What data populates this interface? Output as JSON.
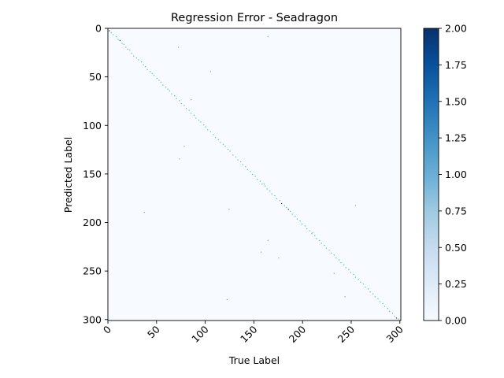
{
  "chart_data": {
    "type": "heatmap",
    "title": "Regression Error - Seadragon",
    "xlabel": "True Label",
    "ylabel": "Predicted Label",
    "xlim": [
      0,
      301
    ],
    "ylim": [
      301,
      0
    ],
    "x_ticks": [
      0,
      50,
      100,
      150,
      200,
      250,
      300
    ],
    "y_ticks": [
      0,
      50,
      100,
      150,
      200,
      250,
      300
    ],
    "x_tick_rotation_deg": 45,
    "colormap": "Blues",
    "color_range": [
      0.0,
      2.0
    ],
    "colorbar_ticks": [
      "0.00",
      "0.25",
      "0.50",
      "0.75",
      "1.00",
      "1.25",
      "1.50",
      "1.75",
      "2.00"
    ],
    "grid": false,
    "background_color": "#f7fbff",
    "diagonal_cells": [
      [
        1,
        2,
        2
      ],
      [
        3,
        4,
        1
      ],
      [
        5,
        6,
        1
      ],
      [
        8,
        8,
        1
      ],
      [
        10,
        11,
        1
      ],
      [
        12,
        12,
        2
      ],
      [
        14,
        15,
        1
      ],
      [
        16,
        16,
        1
      ],
      [
        18,
        19,
        1
      ],
      [
        20,
        21,
        1
      ],
      [
        22,
        22,
        1
      ],
      [
        24,
        25,
        1
      ],
      [
        26,
        28,
        1
      ],
      [
        29,
        30,
        1
      ],
      [
        31,
        32,
        1
      ],
      [
        34,
        34,
        1
      ],
      [
        36,
        37,
        1
      ],
      [
        38,
        39,
        1
      ],
      [
        40,
        42,
        1
      ],
      [
        43,
        44,
        1
      ],
      [
        45,
        46,
        1
      ],
      [
        47,
        48,
        1
      ],
      [
        50,
        51,
        1
      ],
      [
        52,
        53,
        1
      ],
      [
        54,
        55,
        1
      ],
      [
        56,
        58,
        1
      ],
      [
        59,
        60,
        1
      ],
      [
        61,
        62,
        1
      ],
      [
        63,
        64,
        1
      ],
      [
        65,
        67,
        1
      ],
      [
        68,
        69,
        1
      ],
      [
        70,
        72,
        1
      ],
      [
        73,
        74,
        1
      ],
      [
        75,
        77,
        1
      ],
      [
        78,
        79,
        1
      ],
      [
        80,
        82,
        1
      ],
      [
        83,
        84,
        1
      ],
      [
        85,
        87,
        1
      ],
      [
        88,
        89,
        1
      ],
      [
        90,
        92,
        1
      ],
      [
        93,
        94,
        1
      ],
      [
        95,
        96,
        1
      ],
      [
        98,
        99,
        1
      ],
      [
        100,
        101,
        1
      ],
      [
        102,
        104,
        1
      ],
      [
        105,
        106,
        1
      ],
      [
        108,
        109,
        1
      ],
      [
        110,
        112,
        1
      ],
      [
        113,
        114,
        1
      ],
      [
        115,
        117,
        1
      ],
      [
        118,
        119,
        1
      ],
      [
        120,
        121,
        1
      ],
      [
        123,
        124,
        1
      ],
      [
        125,
        126,
        1
      ],
      [
        128,
        130,
        1
      ],
      [
        131,
        132,
        1
      ],
      [
        133,
        135,
        1
      ],
      [
        136,
        137,
        1
      ],
      [
        138,
        140,
        1
      ],
      [
        141,
        142,
        1
      ],
      [
        143,
        145,
        1
      ],
      [
        146,
        147,
        1
      ],
      [
        148,
        150,
        1
      ],
      [
        151,
        152,
        1
      ],
      [
        153,
        155,
        1
      ],
      [
        156,
        157,
        1
      ],
      [
        158,
        160,
        1
      ],
      [
        161,
        162,
        1
      ],
      [
        163,
        165,
        1
      ],
      [
        166,
        167,
        1
      ],
      [
        168,
        170,
        1
      ],
      [
        171,
        172,
        1
      ],
      [
        173,
        175,
        1
      ],
      [
        176,
        177,
        1
      ],
      [
        178,
        180,
        2
      ],
      [
        181,
        182,
        1
      ],
      [
        183,
        184,
        1
      ],
      [
        185,
        186,
        2
      ],
      [
        187,
        188,
        1
      ],
      [
        189,
        191,
        1
      ],
      [
        192,
        193,
        1
      ],
      [
        194,
        196,
        1
      ],
      [
        197,
        198,
        1
      ],
      [
        199,
        201,
        1
      ],
      [
        202,
        203,
        1
      ],
      [
        204,
        206,
        1
      ],
      [
        207,
        208,
        1
      ],
      [
        209,
        211,
        1
      ],
      [
        212,
        213,
        1
      ],
      [
        214,
        216,
        1
      ],
      [
        217,
        218,
        1
      ],
      [
        219,
        221,
        1
      ],
      [
        222,
        223,
        1
      ],
      [
        224,
        226,
        1
      ],
      [
        227,
        228,
        1
      ],
      [
        229,
        231,
        1
      ],
      [
        232,
        233,
        1
      ],
      [
        234,
        236,
        1
      ],
      [
        237,
        238,
        1
      ],
      [
        239,
        241,
        1
      ],
      [
        242,
        243,
        1
      ],
      [
        244,
        246,
        1
      ],
      [
        247,
        248,
        1
      ],
      [
        249,
        251,
        1
      ],
      [
        252,
        253,
        1
      ],
      [
        254,
        256,
        1
      ],
      [
        257,
        258,
        1
      ],
      [
        259,
        261,
        1
      ],
      [
        262,
        263,
        1
      ],
      [
        264,
        266,
        1
      ],
      [
        267,
        268,
        1
      ],
      [
        269,
        271,
        1
      ],
      [
        272,
        273,
        1
      ],
      [
        274,
        276,
        1
      ],
      [
        277,
        278,
        1
      ],
      [
        279,
        281,
        1
      ],
      [
        282,
        283,
        1
      ],
      [
        284,
        286,
        1
      ],
      [
        287,
        288,
        1
      ],
      [
        289,
        291,
        1
      ],
      [
        292,
        293,
        1
      ],
      [
        294,
        296,
        1
      ],
      [
        296,
        298,
        2
      ],
      [
        298,
        299,
        1
      ]
    ],
    "offdiagonal_cells": [
      [
        164,
        8,
        1
      ],
      [
        72,
        19,
        1
      ],
      [
        105,
        44,
        1
      ],
      [
        78,
        121,
        1
      ],
      [
        73,
        134,
        1
      ],
      [
        37,
        189,
        1
      ],
      [
        124,
        186,
        1
      ],
      [
        254,
        182,
        1
      ],
      [
        164,
        218,
        1
      ],
      [
        157,
        230,
        1
      ],
      [
        175,
        236,
        1
      ],
      [
        210,
        210,
        1
      ],
      [
        232,
        252,
        1
      ],
      [
        243,
        276,
        1
      ],
      [
        122,
        279,
        1
      ],
      [
        160,
        160,
        1
      ],
      [
        85,
        73,
        1
      ]
    ]
  }
}
